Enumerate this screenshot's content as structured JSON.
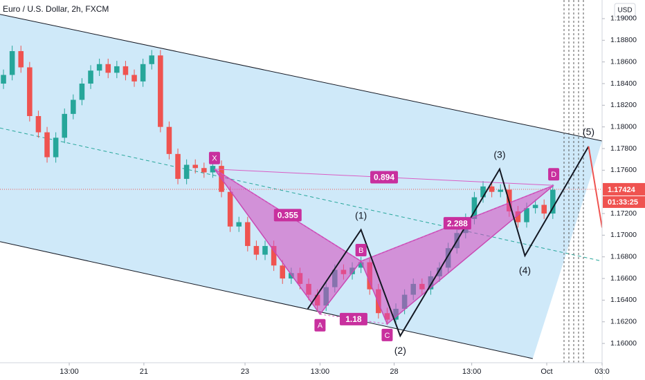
{
  "chart_data": {
    "type": "candlestick",
    "title": "Euro / U.S. Dollar, 2h, FXCM",
    "currency": "USD",
    "xlim": [
      -0.4,
      68.65
    ],
    "ylim": [
      1.15822,
      1.19172
    ],
    "grid": false,
    "xticks": [
      {
        "value": 7.54,
        "label": "13:00"
      },
      {
        "value": 16.1,
        "label": "21"
      },
      {
        "value": 27.7,
        "label": "23"
      },
      {
        "value": 36.3,
        "label": "13:00"
      },
      {
        "value": 44.8,
        "label": "28"
      },
      {
        "value": 53.7,
        "label": "13:00"
      },
      {
        "value": 62.3,
        "label": "Oct"
      },
      {
        "value": 68.65,
        "label": "03:0"
      }
    ],
    "yticks": [
      {
        "value": 1.19,
        "label": "1.19000"
      },
      {
        "value": 1.188,
        "label": "1.18800"
      },
      {
        "value": 1.186,
        "label": "1.18600"
      },
      {
        "value": 1.184,
        "label": "1.18400"
      },
      {
        "value": 1.182,
        "label": "1.18200"
      },
      {
        "value": 1.18,
        "label": "1.18000"
      },
      {
        "value": 1.178,
        "label": "1.17800"
      },
      {
        "value": 1.176,
        "label": "1.17600"
      },
      {
        "value": 1.172,
        "label": "1.17200"
      },
      {
        "value": 1.17,
        "label": "1.17000"
      },
      {
        "value": 1.168,
        "label": "1.16800"
      },
      {
        "value": 1.166,
        "label": "1.16600"
      },
      {
        "value": 1.164,
        "label": "1.16400"
      },
      {
        "value": 1.162,
        "label": "1.16200"
      },
      {
        "value": 1.16,
        "label": "1.16000"
      }
    ],
    "up_color": "#26a69a",
    "down_color": "#ef5350",
    "open": [
      1.184,
      1.1848,
      1.187,
      1.1855,
      1.181,
      1.1795,
      1.1772,
      1.179,
      1.1812,
      1.1825,
      1.184,
      1.1852,
      1.1858,
      1.185,
      1.1856,
      1.1848,
      1.1842,
      1.1858,
      1.1866,
      1.18,
      1.1775,
      1.1752,
      1.1765,
      1.1762,
      1.1758,
      1.1764,
      1.174,
      1.1708,
      1.1712,
      1.169,
      1.1682,
      1.169,
      1.1672,
      1.166,
      1.1665,
      1.1655,
      1.1645,
      1.1635,
      1.1652,
      1.1668,
      1.1664,
      1.167,
      1.1675,
      1.165,
      1.1628,
      1.1622,
      1.1632,
      1.1645,
      1.1655,
      1.165,
      1.1662,
      1.167,
      1.1688,
      1.1702,
      1.1715,
      1.1735,
      1.1745,
      1.174,
      1.1742,
      1.1722,
      1.1712,
      1.1725,
      1.1728,
      1.172
    ],
    "high": [
      1.1853,
      1.1875,
      1.1875,
      1.186,
      1.1815,
      1.18,
      1.1795,
      1.1817,
      1.183,
      1.1845,
      1.1857,
      1.1863,
      1.1863,
      1.1861,
      1.1861,
      1.1853,
      1.1863,
      1.1871,
      1.1871,
      1.1805,
      1.178,
      1.177,
      1.177,
      1.1767,
      1.1769,
      1.1769,
      1.1745,
      1.1717,
      1.1717,
      1.1695,
      1.1695,
      1.1695,
      1.1677,
      1.167,
      1.167,
      1.166,
      1.165,
      1.1657,
      1.1673,
      1.1673,
      1.1675,
      1.168,
      1.168,
      1.1655,
      1.1633,
      1.1637,
      1.165,
      1.166,
      1.166,
      1.1667,
      1.1675,
      1.1693,
      1.1707,
      1.172,
      1.174,
      1.175,
      1.175,
      1.1747,
      1.1747,
      1.1727,
      1.173,
      1.1733,
      1.1733,
      1.1747
    ],
    "low": [
      1.1835,
      1.1843,
      1.185,
      1.1805,
      1.179,
      1.1767,
      1.1767,
      1.1785,
      1.1807,
      1.182,
      1.1835,
      1.1847,
      1.1845,
      1.1845,
      1.1843,
      1.1837,
      1.1837,
      1.1853,
      1.1795,
      1.177,
      1.1747,
      1.1747,
      1.1757,
      1.1753,
      1.1753,
      1.1735,
      1.1703,
      1.1703,
      1.1685,
      1.1677,
      1.1677,
      1.1667,
      1.1655,
      1.1655,
      1.165,
      1.164,
      1.163,
      1.163,
      1.1647,
      1.1659,
      1.1659,
      1.1665,
      1.1645,
      1.1623,
      1.1617,
      1.1617,
      1.1627,
      1.164,
      1.1645,
      1.1645,
      1.1657,
      1.1665,
      1.1683,
      1.1697,
      1.171,
      1.173,
      1.1735,
      1.1735,
      1.1717,
      1.1707,
      1.1707,
      1.172,
      1.1715,
      1.1715
    ],
    "close": [
      1.1848,
      1.187,
      1.1855,
      1.181,
      1.1795,
      1.1772,
      1.179,
      1.1812,
      1.1825,
      1.184,
      1.1852,
      1.1858,
      1.185,
      1.1856,
      1.1848,
      1.1842,
      1.1858,
      1.1866,
      1.18,
      1.1775,
      1.1752,
      1.1765,
      1.1762,
      1.1758,
      1.1764,
      1.174,
      1.1708,
      1.1712,
      1.169,
      1.1682,
      1.169,
      1.1672,
      1.166,
      1.1665,
      1.1655,
      1.1645,
      1.1635,
      1.1652,
      1.1668,
      1.1664,
      1.167,
      1.1675,
      1.165,
      1.1628,
      1.1622,
      1.1632,
      1.1645,
      1.1655,
      1.165,
      1.1662,
      1.167,
      1.1688,
      1.1702,
      1.1715,
      1.1735,
      1.1745,
      1.174,
      1.1742,
      1.1722,
      1.1712,
      1.1725,
      1.1728,
      1.172,
      1.1742
    ],
    "last_price": 1.17424,
    "countdown": "01:33:25",
    "channel": {
      "upper": {
        "x": [
          -0.4,
          68.65
        ],
        "y": [
          1.1904,
          1.1787
        ]
      },
      "lower": {
        "x": [
          -0.4,
          60.7
        ],
        "y": [
          1.1694,
          1.1586
        ]
      },
      "middle": {
        "x": [
          -0.4,
          68.65
        ],
        "y": [
          1.1799,
          1.1676
        ]
      }
    },
    "harmonic": {
      "labels": [
        "X",
        "A",
        "B",
        "C",
        "D"
      ],
      "x": [
        24.2,
        36.3,
        41.0,
        44.0,
        63.1
      ],
      "y": [
        1.1761,
        1.1627,
        1.1676,
        1.1618,
        1.1746
      ],
      "ratios": [
        "0.355",
        "1.18",
        "0.894",
        "2.288"
      ]
    },
    "waves": {
      "labels": [
        "(1)",
        "(2)",
        "(3)",
        "(4)",
        "(5)"
      ],
      "x": [
        34.9,
        41.0,
        45.5,
        56.9,
        59.8,
        67.1
      ],
      "y": [
        1.1632,
        1.1705,
        1.1607,
        1.1761,
        1.1681,
        1.1782
      ]
    },
    "projection": {
      "x": [
        67.1,
        68.65
      ],
      "y": [
        1.1782,
        1.1707
      ]
    }
  }
}
